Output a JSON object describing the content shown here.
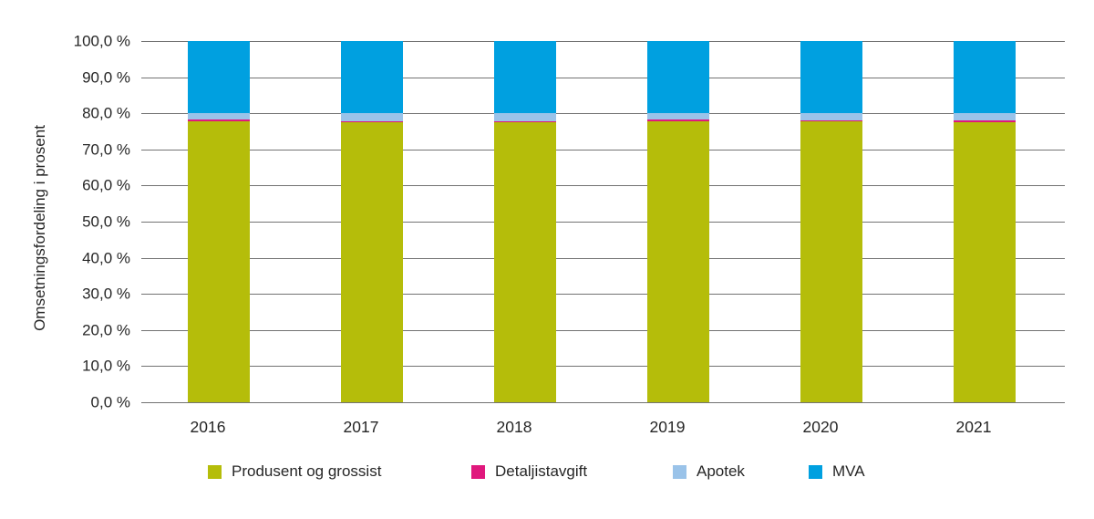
{
  "chart_data": {
    "type": "bar",
    "stacked": true,
    "stacked_total": 100,
    "title": "",
    "xlabel": "",
    "ylabel": "Omsetningsfordeling i prosent",
    "ylim": [
      0,
      100
    ],
    "ytick_step": 10,
    "ytick_labels": [
      "0,0 %",
      "10,0 %",
      "20,0 %",
      "30,0 %",
      "40,0 %",
      "50,0 %",
      "60,0 %",
      "70,0 %",
      "80,0 %",
      "90,0 %",
      "100,0 %"
    ],
    "grid": "horizontal",
    "legend_position": "bottom",
    "categories": [
      "2016",
      "2017",
      "2018",
      "2019",
      "2020",
      "2021"
    ],
    "series": [
      {
        "name": "Produsent og grossist",
        "color": "#b5bd0a",
        "values": [
          77.8,
          77.5,
          77.6,
          77.8,
          77.7,
          77.6
        ]
      },
      {
        "name": "Detaljistavgift",
        "color": "#e0187d",
        "values": [
          0.5,
          0.4,
          0.3,
          0.4,
          0.4,
          0.4
        ]
      },
      {
        "name": "Apotek",
        "color": "#9ac3e9",
        "values": [
          1.7,
          2.1,
          2.1,
          1.9,
          1.9,
          2.0
        ]
      },
      {
        "name": "MVA",
        "color": "#00a0e0",
        "values": [
          20.0,
          20.0,
          20.0,
          19.9,
          20.0,
          20.0
        ]
      }
    ]
  },
  "colors": {
    "gridline": "#737373",
    "text": "#262626",
    "background": "#ffffff"
  }
}
